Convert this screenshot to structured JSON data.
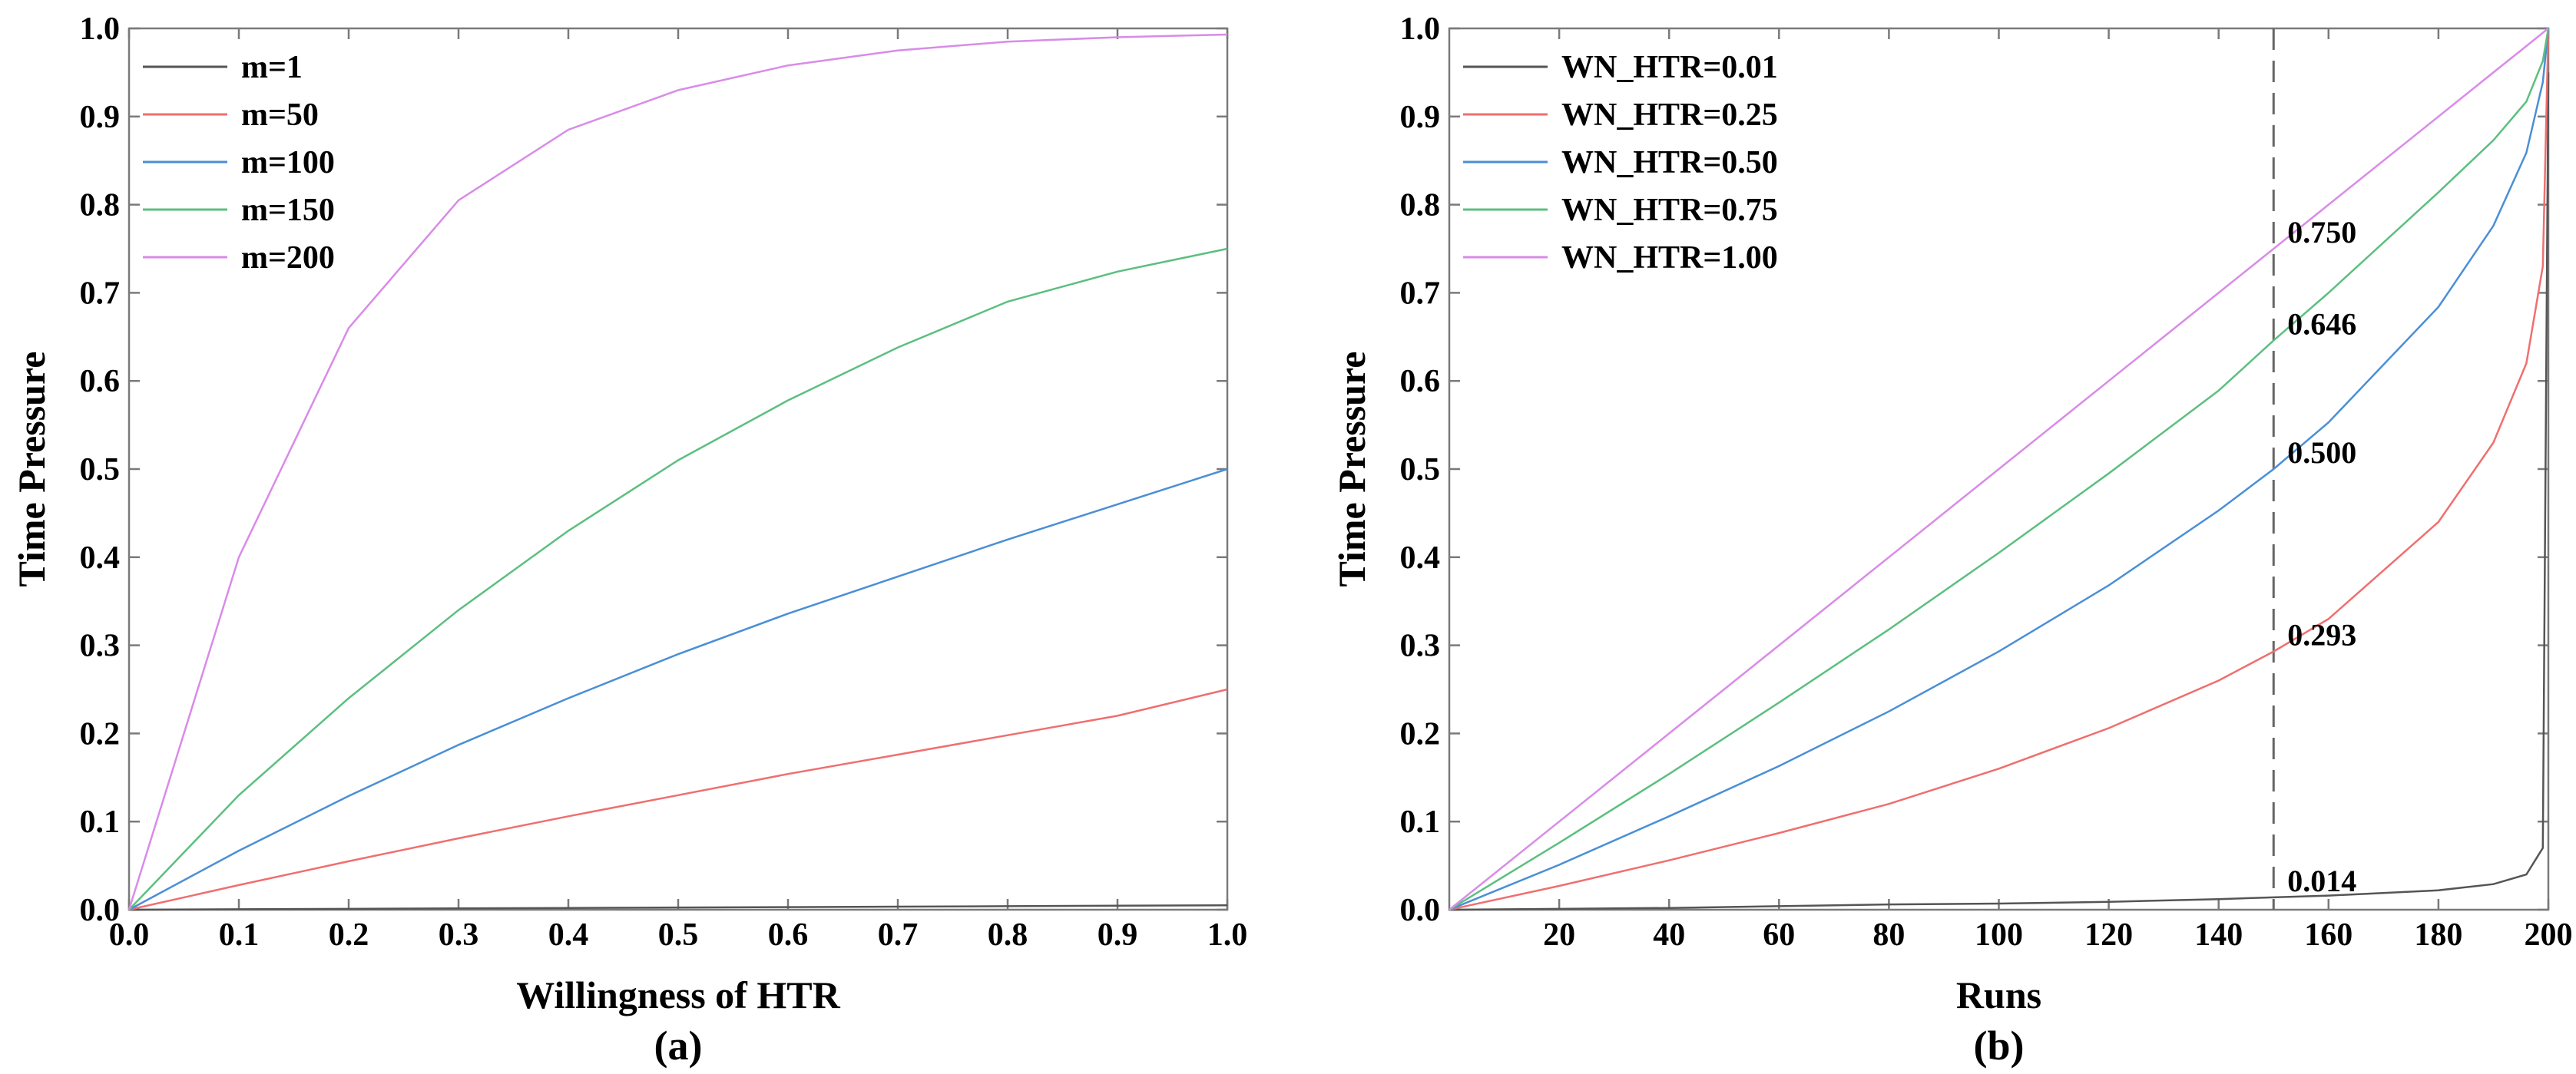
{
  "chart_data": [
    {
      "type": "line",
      "panel_label": "(a)",
      "xlabel": "Willingness of HTR",
      "ylabel": "Time Pressure",
      "xlim": [
        0,
        1
      ],
      "ylim": [
        0,
        1
      ],
      "xticks": [
        "0.0",
        "0.1",
        "0.2",
        "0.3",
        "0.4",
        "0.5",
        "0.6",
        "0.7",
        "0.8",
        "0.9",
        "1.0"
      ],
      "yticks": [
        "0.0",
        "0.1",
        "0.2",
        "0.3",
        "0.4",
        "0.5",
        "0.6",
        "0.7",
        "0.8",
        "0.9",
        "1.0"
      ],
      "legend_position": "top-left",
      "x": [
        0.0,
        0.1,
        0.2,
        0.3,
        0.4,
        0.5,
        0.6,
        0.7,
        0.8,
        0.9,
        1.0
      ],
      "series": [
        {
          "name": "m=1",
          "color": "#555555",
          "values": [
            0.0,
            0.0005,
            0.001,
            0.0015,
            0.002,
            0.0025,
            0.003,
            0.0035,
            0.004,
            0.0045,
            0.005
          ]
        },
        {
          "name": "m=50",
          "color": "#ef6f6f",
          "values": [
            0.0,
            0.028,
            0.055,
            0.081,
            0.106,
            0.13,
            0.154,
            0.176,
            0.198,
            0.22,
            0.25
          ]
        },
        {
          "name": "m=100",
          "color": "#4a8fd6",
          "values": [
            0.0,
            0.067,
            0.129,
            0.187,
            0.24,
            0.29,
            0.336,
            0.378,
            0.42,
            0.46,
            0.5
          ]
        },
        {
          "name": "m=150",
          "color": "#5cbf7f",
          "values": [
            0.0,
            0.13,
            0.24,
            0.34,
            0.43,
            0.51,
            0.578,
            0.638,
            0.69,
            0.724,
            0.75
          ]
        },
        {
          "name": "m=200",
          "color": "#d98be8",
          "values": [
            0.0,
            0.4,
            0.66,
            0.805,
            0.885,
            0.93,
            0.958,
            0.975,
            0.985,
            0.99,
            0.993
          ]
        }
      ]
    },
    {
      "type": "line",
      "panel_label": "(b)",
      "xlabel": "Runs",
      "ylabel": "Time Pressure",
      "xlim": [
        0,
        200
      ],
      "ylim": [
        0,
        1
      ],
      "xticks": [
        "20",
        "40",
        "60",
        "80",
        "100",
        "120",
        "140",
        "160",
        "180",
        "200"
      ],
      "yticks": [
        "0.0",
        "0.1",
        "0.2",
        "0.3",
        "0.4",
        "0.5",
        "0.6",
        "0.7",
        "0.8",
        "0.9",
        "1.0"
      ],
      "legend_position": "top-left",
      "vline_x": 150,
      "x": [
        0,
        20,
        40,
        60,
        80,
        100,
        120,
        140,
        150,
        160,
        180,
        190,
        196,
        199,
        200
      ],
      "series": [
        {
          "name": "WN_HTR=0.01",
          "color": "#555555",
          "values": [
            0.0,
            0.001,
            0.002,
            0.004,
            0.006,
            0.007,
            0.009,
            0.012,
            0.014,
            0.016,
            0.022,
            0.029,
            0.04,
            0.07,
            0.95
          ]
        },
        {
          "name": "WN_HTR=0.25",
          "color": "#ef6f6f",
          "values": [
            0.0,
            0.027,
            0.056,
            0.087,
            0.12,
            0.16,
            0.206,
            0.26,
            0.293,
            0.33,
            0.44,
            0.53,
            0.62,
            0.73,
            1.0
          ]
        },
        {
          "name": "WN_HTR=0.50",
          "color": "#4a8fd6",
          "values": [
            0.0,
            0.051,
            0.106,
            0.163,
            0.225,
            0.293,
            0.368,
            0.453,
            0.5,
            0.553,
            0.684,
            0.776,
            0.859,
            0.939,
            1.0
          ]
        },
        {
          "name": "WN_HTR=0.75",
          "color": "#5cbf7f",
          "values": [
            0.0,
            0.076,
            0.154,
            0.235,
            0.318,
            0.405,
            0.495,
            0.589,
            0.646,
            0.7,
            0.814,
            0.873,
            0.917,
            0.963,
            1.0
          ]
        },
        {
          "name": "WN_HTR=1.00",
          "color": "#d98be8",
          "values": [
            0.0,
            0.1,
            0.2,
            0.3,
            0.4,
            0.5,
            0.6,
            0.7,
            0.75,
            0.8,
            0.9,
            0.95,
            0.98,
            0.995,
            1.0
          ]
        }
      ],
      "annotations": [
        {
          "text": "0.750",
          "x": 150,
          "y": 0.75
        },
        {
          "text": "0.646",
          "x": 150,
          "y": 0.646
        },
        {
          "text": "0.500",
          "x": 150,
          "y": 0.5
        },
        {
          "text": "0.293",
          "x": 150,
          "y": 0.293
        },
        {
          "text": "0.014",
          "x": 150,
          "y": 0.014
        }
      ]
    }
  ]
}
